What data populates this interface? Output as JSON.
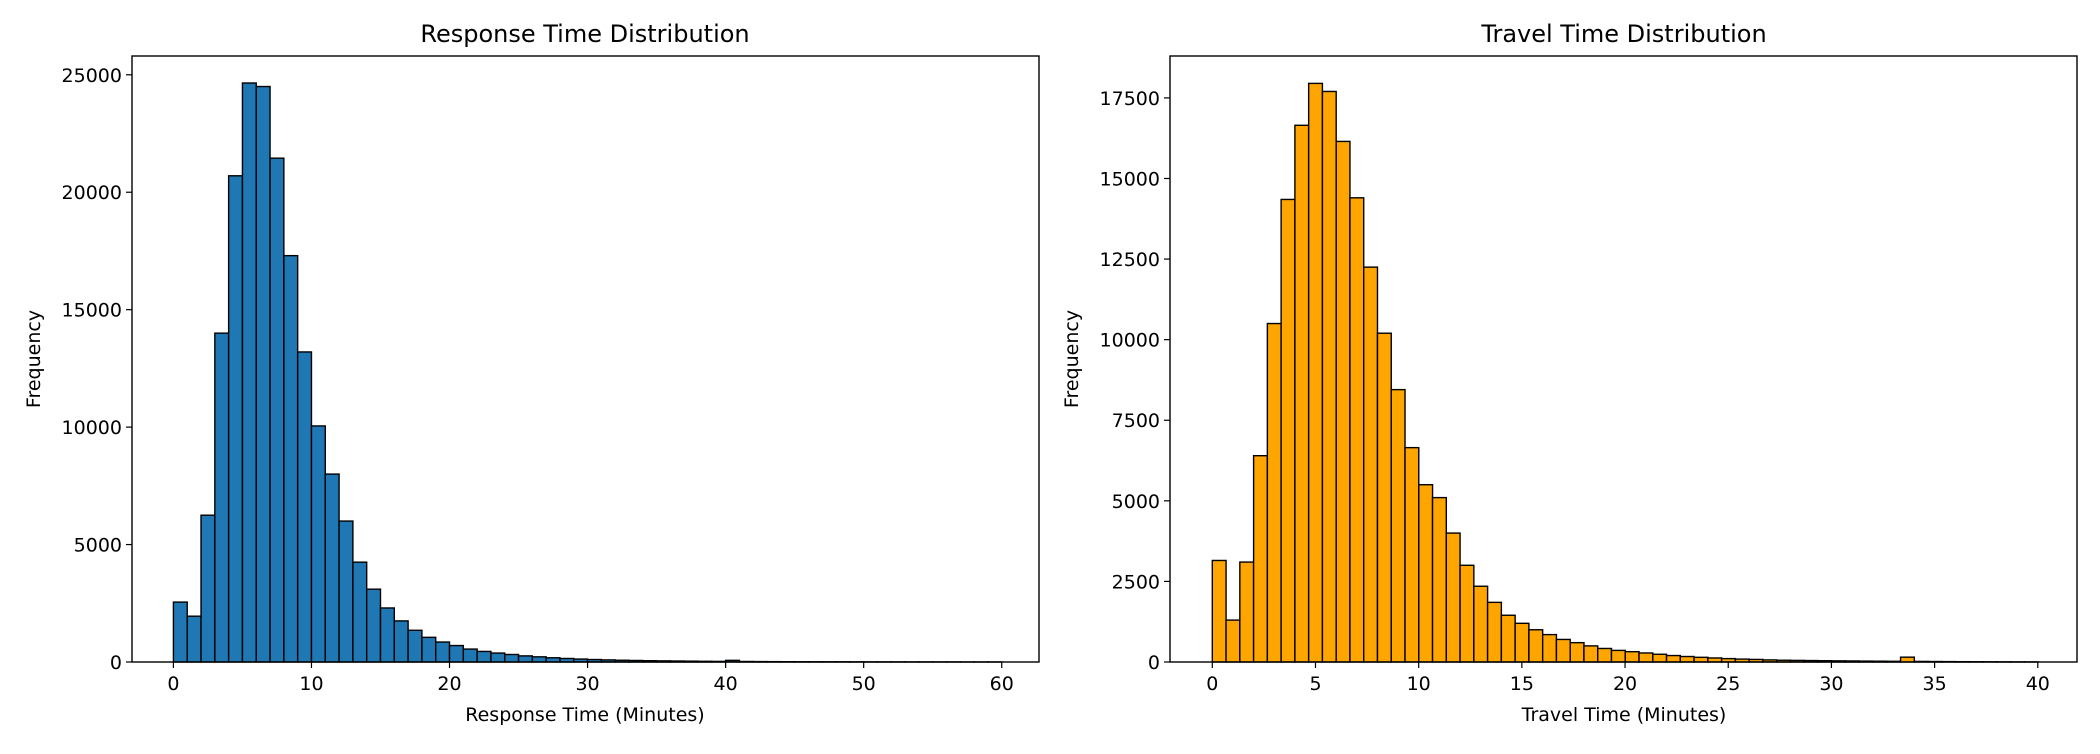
{
  "chart_data": [
    {
      "type": "bar",
      "title": "Response Time Distribution",
      "xlabel": "Response Time (Minutes)",
      "ylabel": "Frequency",
      "bin_width": 1,
      "bin_start": 0,
      "xlim": [
        -3,
        62.7
      ],
      "ylim": [
        0,
        25800
      ],
      "xticks": [
        0,
        10,
        20,
        30,
        40,
        50,
        60
      ],
      "yticks": [
        0,
        5000,
        10000,
        15000,
        20000,
        25000
      ],
      "grid": false,
      "legend": "none",
      "bar_color": "#1f77b4",
      "edge_color": "#000000",
      "values": [
        2550,
        1950,
        6250,
        14000,
        20700,
        24650,
        24500,
        21450,
        17300,
        13200,
        10050,
        8000,
        6000,
        4250,
        3100,
        2300,
        1750,
        1350,
        1050,
        850,
        700,
        550,
        450,
        380,
        320,
        260,
        220,
        180,
        150,
        125,
        105,
        90,
        75,
        65,
        55,
        48,
        42,
        36,
        30,
        26,
        70,
        22,
        18,
        15,
        13,
        11,
        10,
        9,
        8,
        7,
        6,
        5,
        5,
        4,
        4,
        3,
        3,
        2,
        2,
        2
      ]
    },
    {
      "type": "bar",
      "title": "Travel Time Distribution",
      "xlabel": "Travel Time (Minutes)",
      "ylabel": "Frequency",
      "bin_width": 0.667,
      "bin_start": 0,
      "xlim": [
        -2.05,
        41.9
      ],
      "ylim": [
        0,
        18800
      ],
      "xticks": [
        0,
        5,
        10,
        15,
        20,
        25,
        30,
        35,
        40
      ],
      "yticks": [
        0,
        2500,
        5000,
        7500,
        10000,
        12500,
        15000,
        17500
      ],
      "grid": false,
      "legend": "none",
      "bar_color": "#ffa500",
      "edge_color": "#000000",
      "values": [
        3150,
        1300,
        3100,
        6400,
        10500,
        14350,
        16650,
        17950,
        17700,
        16150,
        14400,
        12250,
        10200,
        8450,
        6650,
        5500,
        5100,
        4000,
        3000,
        2350,
        1850,
        1450,
        1200,
        1000,
        850,
        700,
        600,
        500,
        420,
        360,
        320,
        280,
        240,
        200,
        170,
        145,
        125,
        105,
        90,
        80,
        65,
        55,
        50,
        45,
        40,
        35,
        32,
        28,
        25,
        22,
        150,
        18,
        15,
        12,
        10,
        8,
        6,
        5,
        4,
        3
      ]
    }
  ]
}
